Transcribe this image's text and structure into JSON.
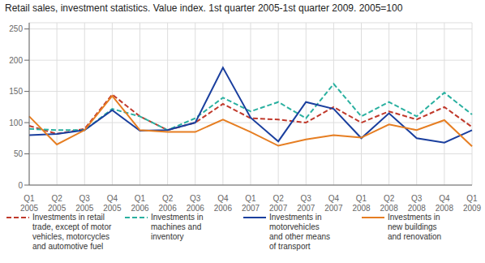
{
  "chart_data": {
    "type": "line",
    "title": "Retail sales, investment statistics. Value index. 1st quarter 2005-1st quarter 2009. 2005=100",
    "categories": [
      "Q1\n2005",
      "Q2\n2005",
      "Q3\n2005",
      "Q4\n2005",
      "Q1\n2006",
      "Q2\n2006",
      "Q3\n2006",
      "Q4\n2006",
      "Q1\n2007",
      "Q2\n2007",
      "Q3\n2007",
      "Q4\n2007",
      "Q1\n2008",
      "Q2\n2008",
      "Q3\n2008",
      "Q4\n2008",
      "Q1\n2009"
    ],
    "series": [
      {
        "name": "Investments in retail\ntrade, except of motor\nvehicles, motorcycles\nand automotive fuel",
        "color": "#c0392b",
        "line_style": "dashed",
        "values": [
          95,
          82,
          90,
          145,
          110,
          88,
          100,
          130,
          107,
          105,
          100,
          125,
          100,
          118,
          105,
          125,
          93
        ]
      },
      {
        "name": "Investments in\nmachines and\ninventory",
        "color": "#2ab0a0",
        "line_style": "dashed",
        "values": [
          90,
          88,
          88,
          122,
          110,
          88,
          107,
          140,
          118,
          133,
          107,
          162,
          110,
          133,
          110,
          148,
          113
        ]
      },
      {
        "name": "Investments in\nmotorvehicles\nand other means\nof transport",
        "color": "#1a3f9e",
        "line_style": "solid",
        "values": [
          80,
          82,
          88,
          120,
          87,
          88,
          100,
          188,
          108,
          70,
          133,
          122,
          75,
          115,
          75,
          68,
          88
        ]
      },
      {
        "name": "Investments in\nnew buildings\nand renovation",
        "color": "#e67e22",
        "line_style": "solid",
        "values": [
          110,
          65,
          88,
          143,
          88,
          85,
          85,
          105,
          85,
          63,
          73,
          80,
          76,
          97,
          88,
          104,
          62
        ]
      }
    ],
    "ylim": [
      0,
      260
    ],
    "yticks": [
      0,
      50,
      100,
      150,
      200,
      250
    ],
    "grid": true,
    "legend": "lower left"
  }
}
